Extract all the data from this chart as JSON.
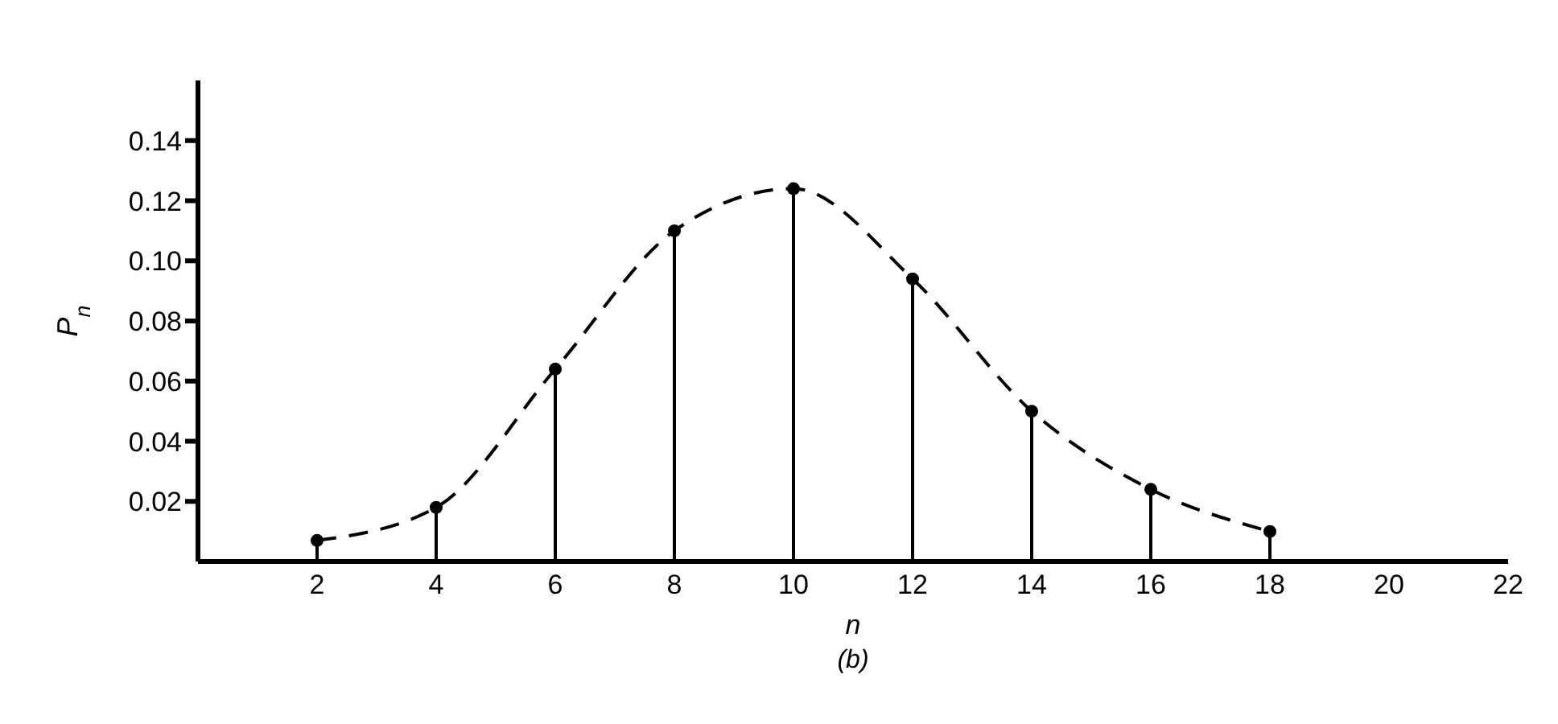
{
  "chart_data": {
    "type": "lollipop",
    "xlabel": "n",
    "ylabel": "P$_{n}$",
    "annotations": [
      "(b)"
    ],
    "x": [
      2,
      4,
      6,
      8,
      10,
      12,
      14,
      16,
      18
    ],
    "series": [
      {
        "color": "#000000",
        "marker": "circle",
        "values": [
          0.007,
          0.018,
          0.064,
          0.11,
          0.124,
          0.094,
          0.05,
          0.024,
          0.01
        ]
      },
      {
        "type": "line",
        "color": "#000000",
        "line_style": "dashed",
        "marker": "none",
        "values": [
          0.007,
          0.018,
          0.064,
          0.11,
          0.124,
          0.094,
          0.05,
          0.024,
          0.01
        ]
      }
    ],
    "xlim": [
      0,
      22
    ],
    "xticks": [
      2,
      4,
      6,
      8,
      10,
      12,
      14,
      16,
      18,
      20,
      22
    ],
    "ylim": [
      0,
      0.16
    ],
    "yticks": [
      0.02,
      0.04,
      0.06,
      0.08,
      {
        "value": 0.1,
        "label": "0.10"
      },
      0.12,
      0.14
    ],
    "legend": false
  }
}
